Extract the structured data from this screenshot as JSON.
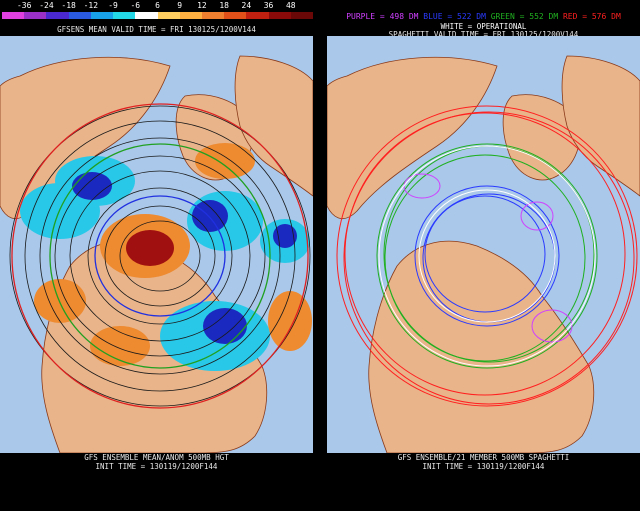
{
  "left_panel": {
    "scale_values": [
      "-36",
      "-24",
      "-18",
      "-12",
      "-9",
      "-6",
      "6",
      "9",
      "12",
      "18",
      "24",
      "36",
      "48"
    ],
    "scale_colors": [
      "#e040e0",
      "#9a30c8",
      "#4a2ad0",
      "#2a5ae0",
      "#18a0e8",
      "#24d8e8",
      "#ffffff",
      "#ffd060",
      "#ffb040",
      "#f08030",
      "#e05018",
      "#c02010",
      "#8a0a0a",
      "#6a0808"
    ],
    "valid_time": "GFSENS MEAN VALID TIME = FRI 130125/1200V144",
    "footer_line1": "GFS ENSEMBLE MEAN/ANOM 500MB HGT",
    "footer_line2": "INIT TIME = 130119/1200F144"
  },
  "right_panel": {
    "legend": [
      {
        "text": "PURPLE = 498 DM",
        "color": "#d040ff"
      },
      {
        "text": "BLUE = 522 DM",
        "color": "#2a3aff"
      },
      {
        "text": "GREEN = 552 DM",
        "color": "#20b020"
      },
      {
        "text": "RED = 576 DM",
        "color": "#ff2020"
      }
    ],
    "legend_white": "WHITE = OPERATIONAL",
    "valid_time": "SPAGHETTI VALID TIME = FRI 130125/1200V144",
    "footer_line1": "GFS ENSEMBLE/21 MEMBER 500MB SPAGHETTI",
    "footer_line2": "INIT TIME = 130119/1200F144"
  },
  "colors": {
    "ocean": "#a9c8ea",
    "land": "#e9b48a",
    "coast": "#8a3a1a",
    "contour": "#1a1a1a",
    "anom_positive": "#ee8a30",
    "anom_strong_positive": "#a01010",
    "anom_negative": "#28c8e8",
    "anom_strong_negative": "#1a2ac0"
  }
}
